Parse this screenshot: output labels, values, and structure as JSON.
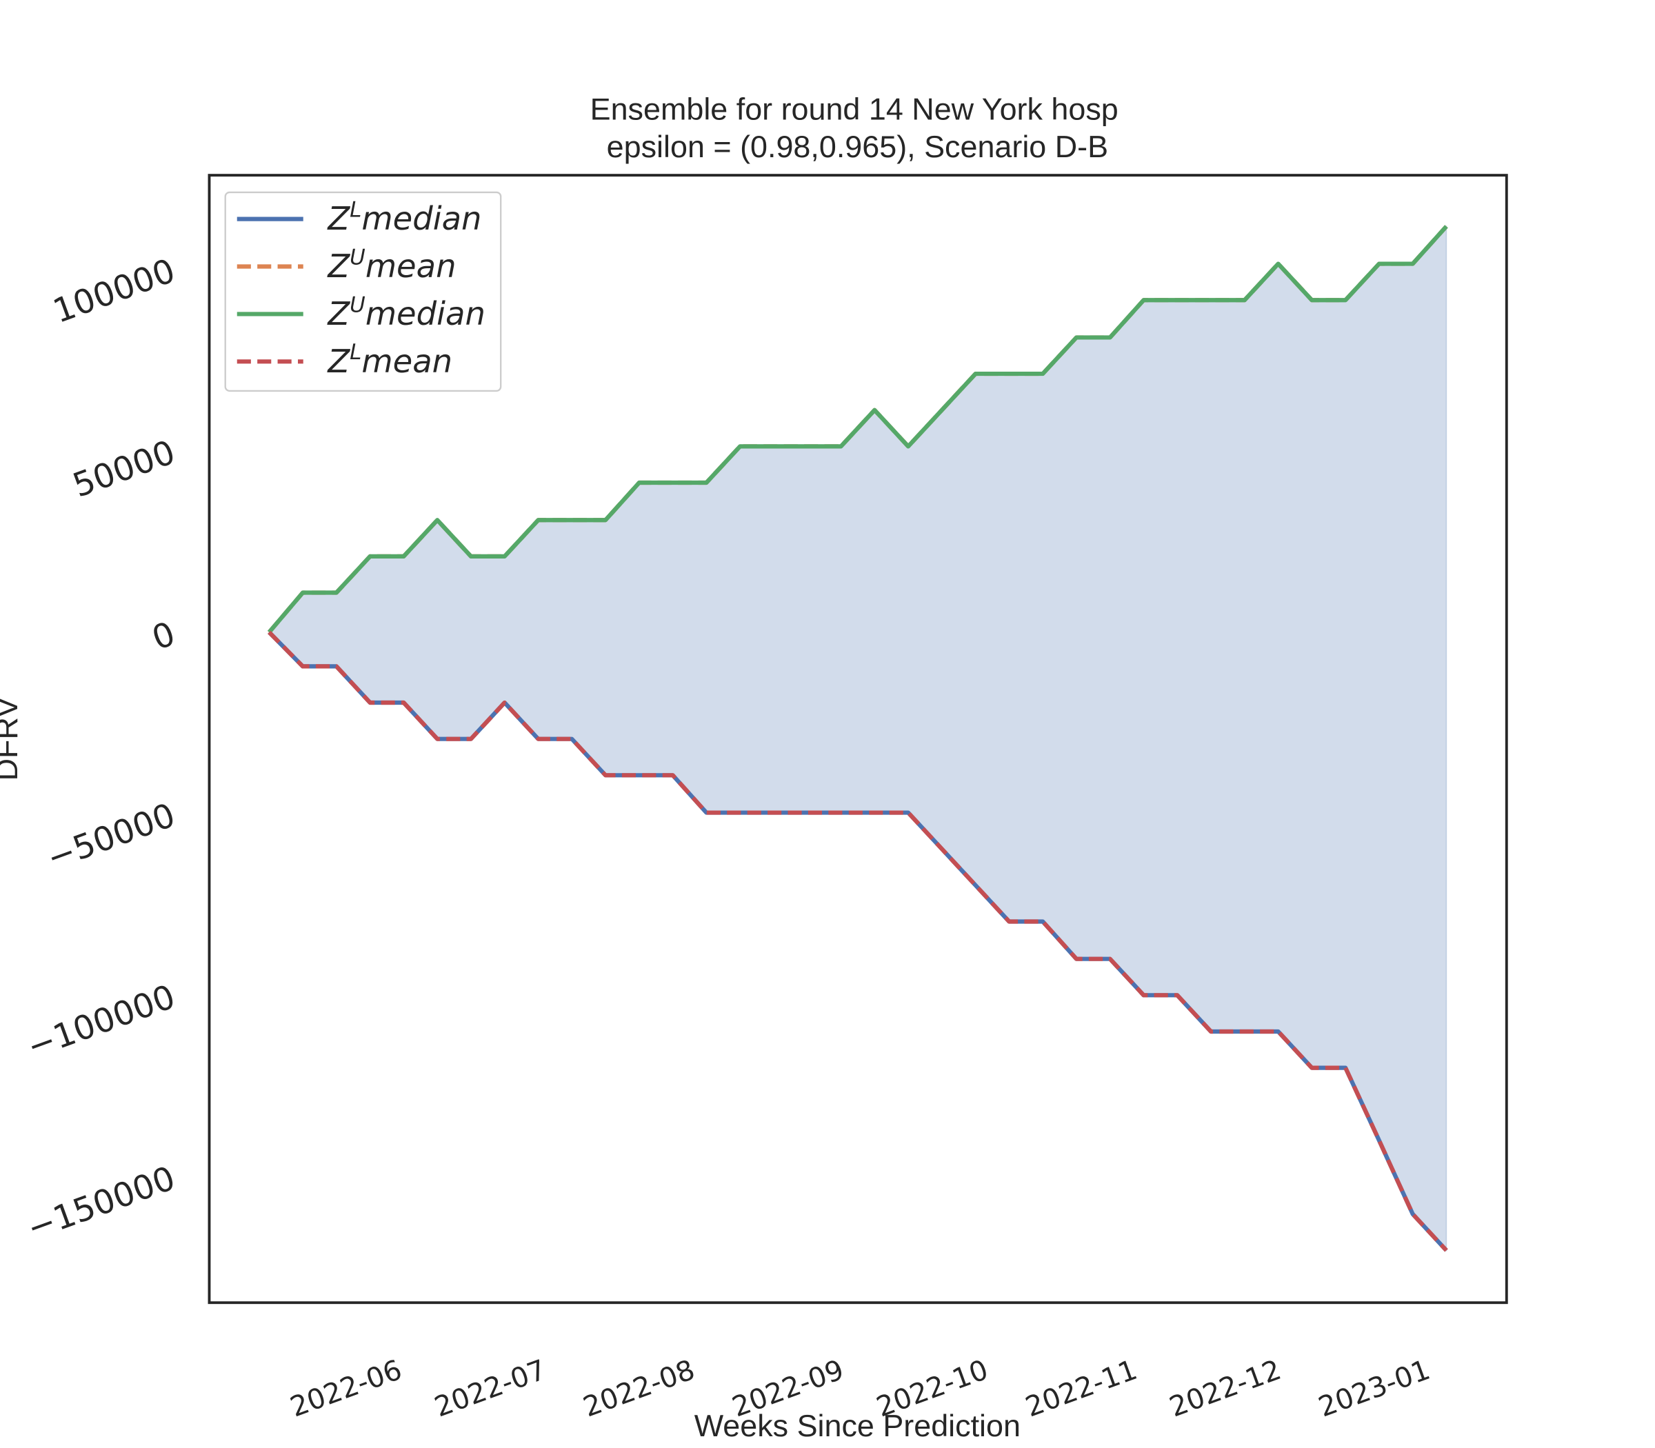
{
  "chart_data": {
    "type": "line",
    "title": "Ensemble for round 14 New York  hosp",
    "subtitle": "epsilon = (0.98,0.965), Scenario D-B",
    "x_label": "Weeks Since Prediction",
    "y_label": "DFRV",
    "x": [
      0,
      1,
      2,
      3,
      4,
      5,
      6,
      7,
      8,
      9,
      10,
      11,
      12,
      13,
      14,
      15,
      16,
      17,
      18,
      19,
      20,
      21,
      22,
      23,
      24,
      25,
      26,
      27,
      28,
      29,
      30,
      31,
      32,
      33,
      34,
      35
    ],
    "xlim": [
      -1.78,
      36.79
    ],
    "xticks": [
      {
        "value": 4,
        "label": "2022-06"
      },
      {
        "value": 8.29,
        "label": "2022-07"
      },
      {
        "value": 12.71,
        "label": "2022-08"
      },
      {
        "value": 17.14,
        "label": "2022-09"
      },
      {
        "value": 21.43,
        "label": "2022-10"
      },
      {
        "value": 25.86,
        "label": "2022-11"
      },
      {
        "value": 30.14,
        "label": "2022-12"
      },
      {
        "value": 34.57,
        "label": "2023-01"
      }
    ],
    "ylim": [
      -184700,
      125900
    ],
    "yticks": [
      {
        "value": -150000,
        "label": "−150000"
      },
      {
        "value": -100000,
        "label": "−100000"
      },
      {
        "value": -50000,
        "label": "−50000"
      },
      0,
      50000,
      100000
    ],
    "fill_color": "#4c72b0",
    "legend": "upper left",
    "series": [
      {
        "name": "ZLmedian",
        "color": "#4c72b0",
        "dashed": false,
        "values": [
          0,
          -9400,
          -9400,
          -19400,
          -19400,
          -29400,
          -29400,
          -19400,
          -29400,
          -29400,
          -39400,
          -39400,
          -39400,
          -49700,
          -49700,
          -49700,
          -49700,
          -49700,
          -49700,
          -49700,
          -59700,
          -69700,
          -79700,
          -79700,
          -90000,
          -90000,
          -100000,
          -100000,
          -110000,
          -110000,
          -110000,
          -120000,
          -120000,
          -140000,
          -160300,
          -170300
        ]
      },
      {
        "name": "ZUmean",
        "color": "#dd8452",
        "dashed": true,
        "values": [
          0,
          10900,
          10900,
          20900,
          20900,
          30900,
          20900,
          20900,
          30900,
          30900,
          30900,
          41200,
          41200,
          41200,
          51200,
          51200,
          51200,
          51200,
          61200,
          51200,
          61200,
          71200,
          71200,
          71200,
          81200,
          81200,
          91500,
          91500,
          91500,
          91500,
          101500,
          91500,
          91500,
          101500,
          101500,
          111800
        ]
      },
      {
        "name": "ZUmedian",
        "color": "#55a868",
        "dashed": false,
        "values": [
          0,
          10900,
          10900,
          20900,
          20900,
          30900,
          20900,
          20900,
          30900,
          30900,
          30900,
          41200,
          41200,
          41200,
          51200,
          51200,
          51200,
          51200,
          61200,
          51200,
          61200,
          71200,
          71200,
          71200,
          81200,
          81200,
          91500,
          91500,
          91500,
          91500,
          101500,
          91500,
          91500,
          101500,
          101500,
          111800
        ]
      },
      {
        "name": "ZLmean",
        "color": "#c44e52",
        "dashed": true,
        "values": [
          0,
          -9400,
          -9400,
          -19400,
          -19400,
          -29400,
          -29400,
          -19400,
          -29400,
          -29400,
          -39400,
          -39400,
          -39400,
          -49700,
          -49700,
          -49700,
          -49700,
          -49700,
          -49700,
          -49700,
          -59700,
          -69700,
          -79700,
          -79700,
          -90000,
          -90000,
          -100000,
          -100000,
          -110000,
          -110000,
          -110000,
          -120000,
          -120000,
          -140000,
          -160300,
          -170300
        ]
      }
    ]
  }
}
